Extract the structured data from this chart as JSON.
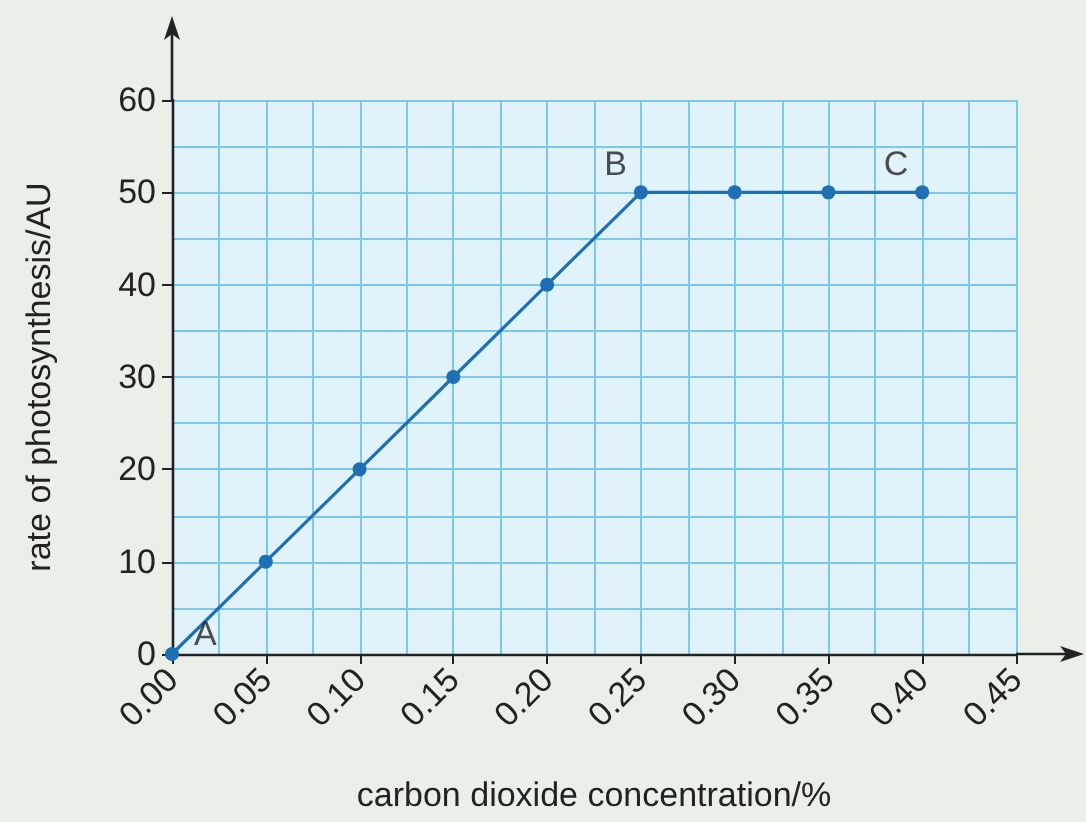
{
  "chart_data": {
    "type": "line",
    "xlabel": "carbon dioxide concentration/%",
    "ylabel": "rate of photosynthesis/AU",
    "x": [
      0,
      0.05,
      0.1,
      0.15,
      0.2,
      0.25,
      0.3,
      0.35,
      0.4
    ],
    "series": [
      {
        "color": "#1f6fb5",
        "values": [
          0,
          10,
          20,
          30,
          40,
          50,
          50,
          50,
          50
        ]
      }
    ],
    "xlim": [
      0,
      0.45
    ],
    "xticks": [
      {
        "value": 0,
        "label": "0.00"
      },
      {
        "value": 0.05,
        "label": "0.05"
      },
      {
        "value": 0.1,
        "label": "0.10"
      },
      {
        "value": 0.15,
        "label": "0.15"
      },
      {
        "value": 0.2,
        "label": "0.20"
      },
      {
        "value": 0.25,
        "label": "0.25"
      },
      {
        "value": 0.3,
        "label": "0.30"
      },
      {
        "value": 0.35,
        "label": "0.35"
      },
      {
        "value": 0.4,
        "label": "0.40"
      },
      {
        "value": 0.45,
        "label": "0.45"
      }
    ],
    "ylim": [
      0,
      60
    ],
    "yticks": [
      0,
      10,
      20,
      30,
      40,
      50,
      60
    ],
    "annotations": [
      {
        "text": "A",
        "x": 0,
        "y": 0
      },
      {
        "text": "B",
        "x": 0.25,
        "y": 50
      },
      {
        "text": "C",
        "x": 0.4,
        "y": 50
      }
    ],
    "grid": true,
    "marker": "circle",
    "line_style": "solid"
  }
}
